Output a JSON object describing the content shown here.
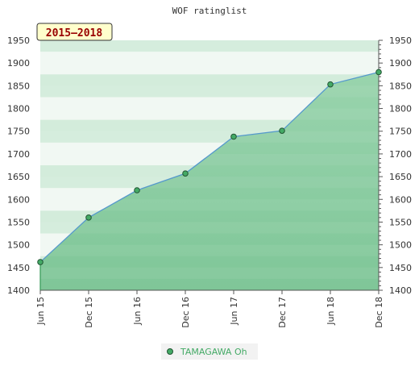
{
  "chart_data": {
    "type": "area",
    "title": "WOF ratinglist",
    "period_badge": "2015–2018",
    "categories": [
      "Jun 15",
      "Dec 15",
      "Jun 16",
      "Dec 16",
      "Jun 17",
      "Dec 17",
      "Jun 18",
      "Dec 18"
    ],
    "series": [
      {
        "name": "TAMAGAWA Oh",
        "values": [
          1462,
          1560,
          1620,
          1657,
          1738,
          1751,
          1853,
          1880
        ]
      }
    ],
    "ylim": [
      1400,
      1950
    ],
    "yticks": [
      1400,
      1450,
      1500,
      1550,
      1600,
      1650,
      1700,
      1750,
      1800,
      1850,
      1900,
      1950
    ],
    "grid": true,
    "legend_position": "bottom-center",
    "colors": {
      "line": "#5599cc",
      "marker": "#44aa66",
      "fill_top": "#99d4ad",
      "fill_bottom": "#7fc698",
      "band_light": "#f1f8f3",
      "band_dark": "#d3ecdb",
      "legend_text": "#44aa66",
      "badge_bg": "#ffffcc",
      "badge_text": "#990000"
    }
  }
}
